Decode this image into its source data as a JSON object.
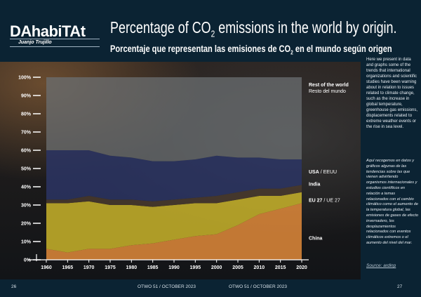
{
  "header": {
    "logo": "DAhabiTAt",
    "author": "Juanjo Trujillo",
    "title_en_a": "Percentage of CO",
    "title_en_sub": "2",
    "title_en_b": " emissions in the world by origin.",
    "title_es_a": "Porcentaje que representan las emisiones de CO",
    "title_es_sub": "2",
    "title_es_b": " en el mundo según origen"
  },
  "sidebar": {
    "text_en": "Here we present in data and graphs some of the trends that international organizations and scientific studies have been warning about in relation to issues related to climate change, such as the increase in global temperature, greenhouse gas emissions, displacements related to extreme weather events or the rise in sea level.",
    "text_es": "Aquí recogemos en datos y gráficos algunas de las tendencias sobre las que vienen advirtiendo organismos internacionales y estudios científicos en relación a temas relacionados con el cambio climático como el aumento de la temperatura global, las emisiones de gases de efecto invernadero, los desplazamientos relacionados con eventos climáticos extremos o el aumento del nivel del mar.",
    "source": "Source: ardinp"
  },
  "footer": {
    "page_left": "26",
    "issue_left": "OTWO 51 / OCTOBER 2023",
    "issue_right": "OTWO 51 / OCTOBER 2023",
    "page_right": "27"
  },
  "colors": {
    "china": "#e08a3a",
    "eu": "#c9b42a",
    "india": "#4a3b2e",
    "usa": "#2c3564",
    "rest": "#6b6f72"
  },
  "chart_data": {
    "type": "area",
    "stacked": true,
    "normalized_percent": true,
    "x": [
      1960,
      1965,
      1970,
      1975,
      1980,
      1985,
      1990,
      1995,
      2000,
      2005,
      2010,
      2015,
      2020
    ],
    "xticks": [
      "1960",
      "1965",
      "1970",
      "1975",
      "1980",
      "1985",
      "1990",
      "1995",
      "2000",
      "2005",
      "2010",
      "2015",
      "2020"
    ],
    "yticks": [
      "0%",
      "10%",
      "20%",
      "30%",
      "40%",
      "50%",
      "60%",
      "70%",
      "80%",
      "90%",
      "100%"
    ],
    "ylim": [
      0,
      100
    ],
    "series": [
      {
        "name": "China",
        "values": [
          6,
          4,
          6,
          6,
          8,
          9,
          11,
          13,
          14,
          19,
          25,
          28,
          31
        ]
      },
      {
        "name": "EU 27 / UE 27",
        "values": [
          25,
          27,
          26,
          24,
          22,
          20,
          19,
          18,
          17,
          14,
          10,
          7,
          6
        ]
      },
      {
        "name": "India",
        "values": [
          2,
          2,
          3,
          3,
          3,
          3,
          3,
          3,
          4,
          4,
          4,
          4,
          4
        ]
      },
      {
        "name": "USA / EEUU",
        "values": [
          27,
          27,
          25,
          24,
          23,
          22,
          21,
          21,
          22,
          19,
          17,
          16,
          14
        ]
      },
      {
        "name": "Rest of the world / Resto del mundo",
        "values": [
          40,
          40,
          40,
          43,
          44,
          46,
          46,
          45,
          43,
          44,
          44,
          45,
          45
        ]
      }
    ],
    "legend": [
      {
        "en": "Rest of the world",
        "es": "Resto del mundo"
      },
      {
        "en": "USA",
        "es": "EEUU"
      },
      {
        "en": "India",
        "es": ""
      },
      {
        "en": "EU 27",
        "es": "UE 27"
      },
      {
        "en": "China",
        "es": ""
      }
    ]
  }
}
